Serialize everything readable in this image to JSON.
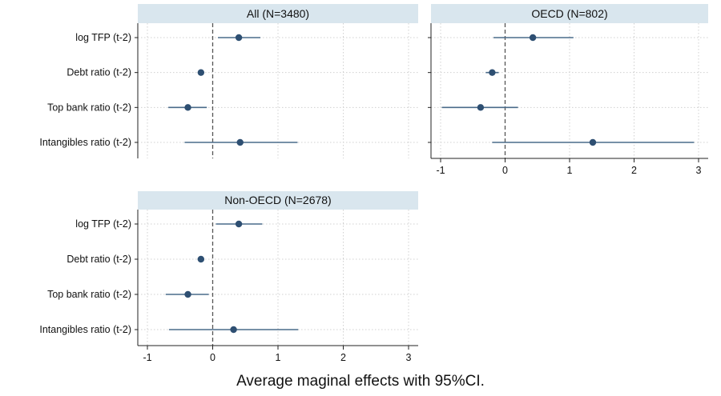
{
  "caption": "Average maginal effects with 95%CI.",
  "colors": {
    "header_bg": "#d9e6ee",
    "marker": "#2e4f72",
    "ci_line": "#4a6b8a",
    "grid": "#d0d0d0",
    "zero_line": "#555555",
    "axis": "#222222"
  },
  "chart_data": [
    {
      "type": "scatter",
      "title": "All (N=3480)",
      "categories": [
        "log TFP (t-2)",
        "Debt ratio (t-2)",
        "Top bank ratio (t-2)",
        "Intangibles ratio (t-2)"
      ],
      "estimates": [
        0.4,
        -0.18,
        -0.38,
        0.42
      ],
      "ci_low": [
        0.08,
        -0.22,
        -0.68,
        -0.43
      ],
      "ci_high": [
        0.73,
        -0.14,
        -0.09,
        1.3
      ],
      "xlim": [
        -1.1,
        3.15
      ],
      "xticks": [
        -1,
        0,
        1,
        2,
        3
      ],
      "show_x_axis": false,
      "reference_line": 0,
      "grid": true
    },
    {
      "type": "scatter",
      "title": "OECD  (N=802)",
      "categories": [
        "log TFP (t-2)",
        "Debt ratio (t-2)",
        "Top bank ratio (t-2)",
        "Intangibles ratio (t-2)"
      ],
      "estimates": [
        0.43,
        -0.2,
        -0.38,
        1.36
      ],
      "ci_low": [
        -0.18,
        -0.3,
        -0.98,
        -0.2
      ],
      "ci_high": [
        1.06,
        -0.1,
        0.2,
        2.93
      ],
      "xlim": [
        -1.1,
        3.15
      ],
      "xticks": [
        -1,
        0,
        1,
        2,
        3
      ],
      "xtick_labels": [
        "-1",
        "0",
        "1",
        "2",
        "3"
      ],
      "show_x_axis": true,
      "reference_line": 0,
      "grid": true
    },
    {
      "type": "scatter",
      "title": "Non-OECD  (N=2678)",
      "categories": [
        "log TFP (t-2)",
        "Debt ratio (t-2)",
        "Top bank ratio (t-2)",
        "Intangibles ratio (t-2)"
      ],
      "estimates": [
        0.4,
        -0.18,
        -0.38,
        0.32
      ],
      "ci_low": [
        0.05,
        -0.23,
        -0.72,
        -0.67
      ],
      "ci_high": [
        0.76,
        -0.13,
        -0.06,
        1.31
      ],
      "xlim": [
        -1.1,
        3.15
      ],
      "xticks": [
        -1,
        0,
        1,
        2,
        3
      ],
      "xtick_labels": [
        "-1",
        "0",
        "1",
        "2",
        "3"
      ],
      "show_x_axis": true,
      "reference_line": 0,
      "grid": true
    }
  ]
}
